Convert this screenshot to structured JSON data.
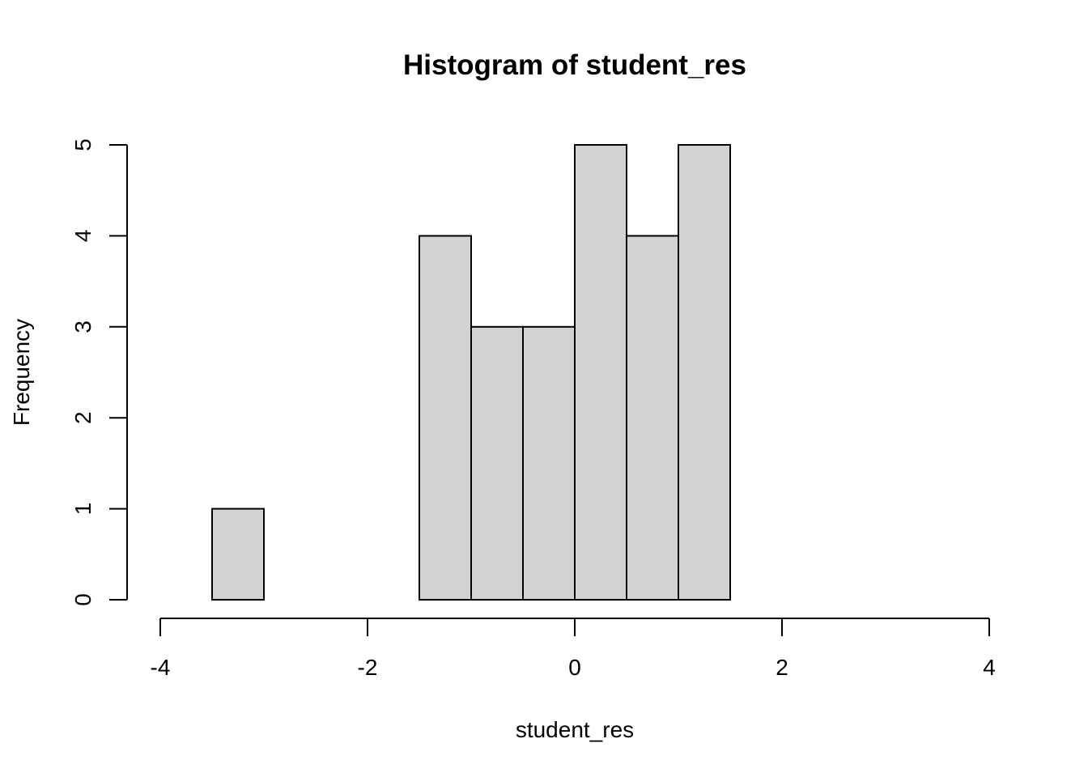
{
  "chart_data": {
    "type": "bar",
    "title": "Histogram of student_res",
    "xlabel": "student_res",
    "ylabel": "Frequency",
    "bins": [
      {
        "x0": -3.5,
        "x1": -3.0,
        "count": 1
      },
      {
        "x0": -3.0,
        "x1": -2.5,
        "count": 0
      },
      {
        "x0": -2.5,
        "x1": -2.0,
        "count": 0
      },
      {
        "x0": -2.0,
        "x1": -1.5,
        "count": 0
      },
      {
        "x0": -1.5,
        "x1": -1.0,
        "count": 4
      },
      {
        "x0": -1.0,
        "x1": -0.5,
        "count": 3
      },
      {
        "x0": -0.5,
        "x1": 0.0,
        "count": 3
      },
      {
        "x0": 0.0,
        "x1": 0.5,
        "count": 5
      },
      {
        "x0": 0.5,
        "x1": 1.0,
        "count": 4
      },
      {
        "x0": 1.0,
        "x1": 1.5,
        "count": 5
      }
    ],
    "xlim": [
      -4,
      4
    ],
    "ylim": [
      0,
      5
    ],
    "x_ticks": [
      "-4",
      "-2",
      "0",
      "2",
      "4"
    ],
    "y_ticks": [
      "0",
      "1",
      "2",
      "3",
      "4",
      "5"
    ],
    "bar_color": "#d3d3d3",
    "grid": false,
    "legend": "none"
  }
}
